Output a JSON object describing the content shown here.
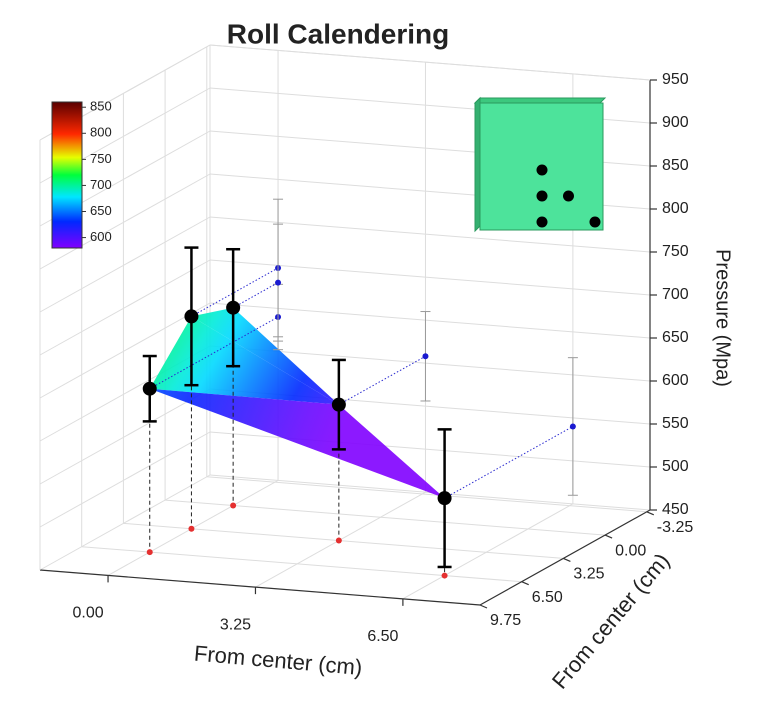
{
  "chart_data": {
    "type": "scatter3d",
    "title": "Roll Calendering",
    "xlabel": "From center (cm)",
    "ylabel": "From center (cm)",
    "zlabel": "Pressure (Mpa)",
    "x": [
      0,
      0,
      0,
      3.25,
      6.5
    ],
    "y": [
      6.5,
      3.25,
      0,
      3.25,
      6.5
    ],
    "z": [
      640,
      697,
      680,
      608,
      540
    ],
    "error": [
      38,
      80,
      68,
      52,
      80
    ],
    "xlim": [
      -1.5,
      8.2
    ],
    "ylim": [
      -3.5,
      9.75
    ],
    "zlim": [
      450,
      950
    ],
    "xticks": [
      {
        "value": 0,
        "label": "0.00"
      },
      {
        "value": 3.25,
        "label": "3.25"
      },
      {
        "value": 6.5,
        "label": "6.50"
      }
    ],
    "yticks": [
      {
        "value": -3.25,
        "label": "-3.25"
      },
      {
        "value": 0,
        "label": "0.00"
      },
      {
        "value": 3.25,
        "label": "3.25"
      },
      {
        "value": 6.5,
        "label": "6.50"
      },
      {
        "value": 9.75,
        "label": "9.75"
      }
    ],
    "zticks": [
      450,
      500,
      550,
      600,
      650,
      700,
      750,
      800,
      850,
      900,
      950
    ],
    "colorbar": {
      "lim": [
        580,
        860
      ],
      "ticks": [
        600,
        650,
        700,
        750,
        800,
        850
      ]
    },
    "grid": true
  }
}
